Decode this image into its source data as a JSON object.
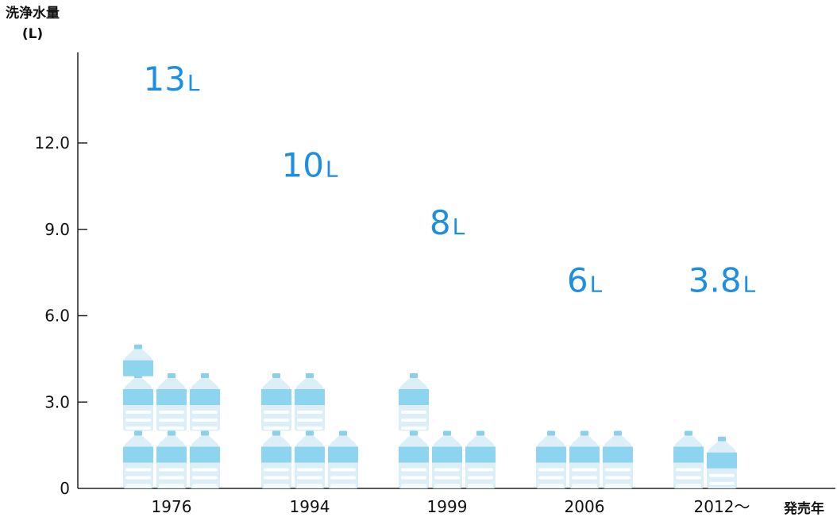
{
  "chart_data": {
    "type": "bar",
    "title": "",
    "ylabel_line1": "洗浄水量",
    "ylabel_line2": "(L)",
    "xlabel": "発売年",
    "categories": [
      "1976",
      "1994",
      "1999",
      "2006",
      "2012〜"
    ],
    "values": [
      13,
      10,
      8,
      6,
      3.8
    ],
    "value_labels": [
      {
        "num": "13",
        "unit": "L"
      },
      {
        "num": "10",
        "unit": "L"
      },
      {
        "num": "8",
        "unit": "L"
      },
      {
        "num": "6",
        "unit": "L"
      },
      {
        "num": "3.8",
        "unit": "L"
      }
    ],
    "yticks": [
      "0",
      "3.0",
      "6.0",
      "9.0",
      "12.0"
    ],
    "ylim": [
      0,
      15
    ],
    "bottle_unit_liters": 2,
    "colors": {
      "label": "#1e8fe0",
      "bottle_body": "#dceff8",
      "bottle_label": "#8dd5ee",
      "bottle_cap": "#8ccfe9",
      "bottle_ridge": "#ffffff",
      "axis": "#222222"
    }
  }
}
